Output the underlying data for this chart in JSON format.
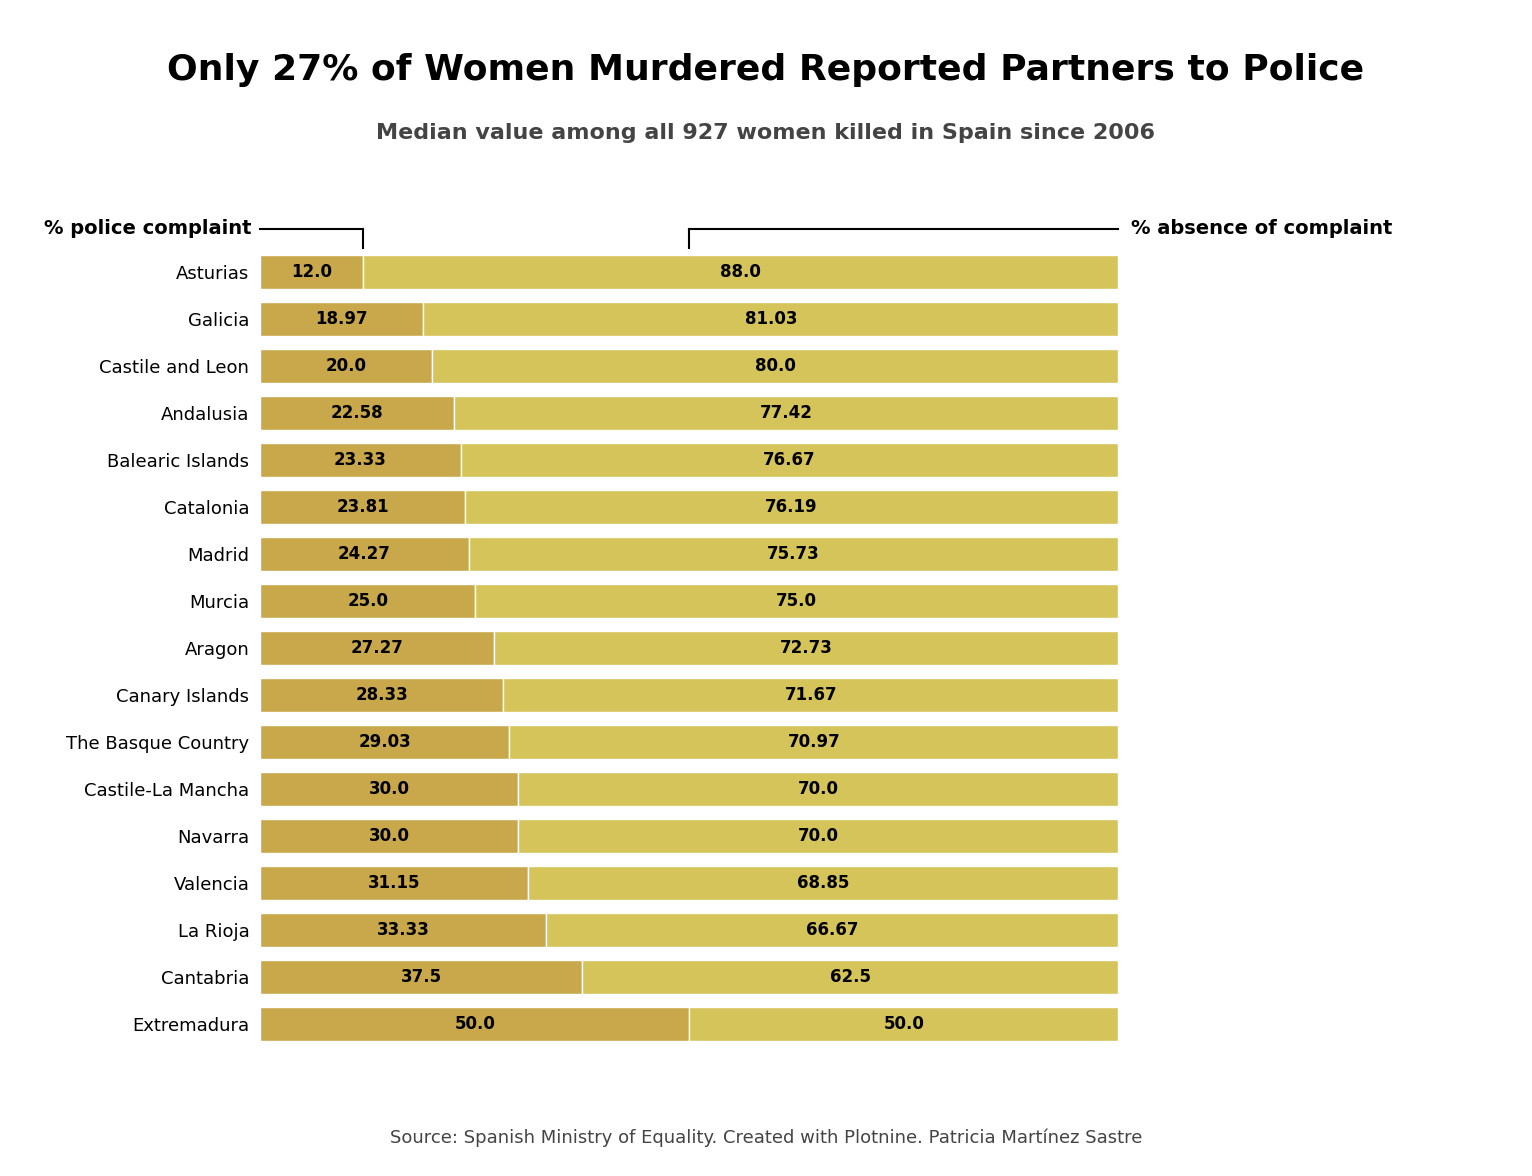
{
  "title": "Only 27% of Women Murdered Reported Partners to Police",
  "subtitle": "Median value among all 927 women killed in Spain since 2006",
  "source": "Source: Spanish Ministry of Equality. Created with Plotnine. Patricia Martínez Sastre",
  "regions": [
    "Asturias",
    "Galicia",
    "Castile and Leon",
    "Andalusia",
    "Balearic Islands",
    "Catalonia",
    "Madrid",
    "Murcia",
    "Aragon",
    "Canary Islands",
    "The Basque Country",
    "Castile-La Mancha",
    "Navarra",
    "Valencia",
    "La Rioja",
    "Cantabria",
    "Extremadura"
  ],
  "police_pct": [
    12.0,
    18.97,
    20.0,
    22.58,
    23.33,
    23.81,
    24.27,
    25.0,
    27.27,
    28.33,
    29.03,
    30.0,
    30.0,
    31.15,
    33.33,
    37.5,
    50.0
  ],
  "absence_pct": [
    88.0,
    81.03,
    80.0,
    77.42,
    76.67,
    76.19,
    75.73,
    75.0,
    72.73,
    71.67,
    70.97,
    70.0,
    70.0,
    68.85,
    66.67,
    62.5,
    50.0
  ],
  "color_police": "#C8A84B",
  "color_absence": "#D4C45A",
  "background_color": "#ffffff",
  "title_fontsize": 26,
  "subtitle_fontsize": 16,
  "label_fontsize": 13,
  "bar_label_fontsize": 12,
  "source_fontsize": 13,
  "annotation_left": "% police complaint",
  "annotation_right": "% absence of complaint"
}
